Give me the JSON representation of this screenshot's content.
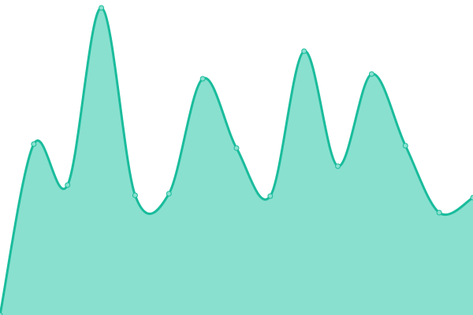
{
  "chart_data": {
    "type": "area",
    "x": [
      0,
      1,
      2,
      3,
      4,
      5,
      6,
      7,
      8,
      9,
      10,
      11,
      12,
      13,
      14
    ],
    "values": [
      0,
      217,
      165,
      390,
      152,
      154,
      300,
      212,
      151,
      335,
      189,
      306,
      215,
      130,
      149
    ],
    "ylim": [
      0,
      400
    ],
    "grid": false,
    "legend": "none",
    "colors": {
      "line": "#1abc9c",
      "fill": "#89e0cf",
      "point_fill": "#89e0cf"
    }
  }
}
